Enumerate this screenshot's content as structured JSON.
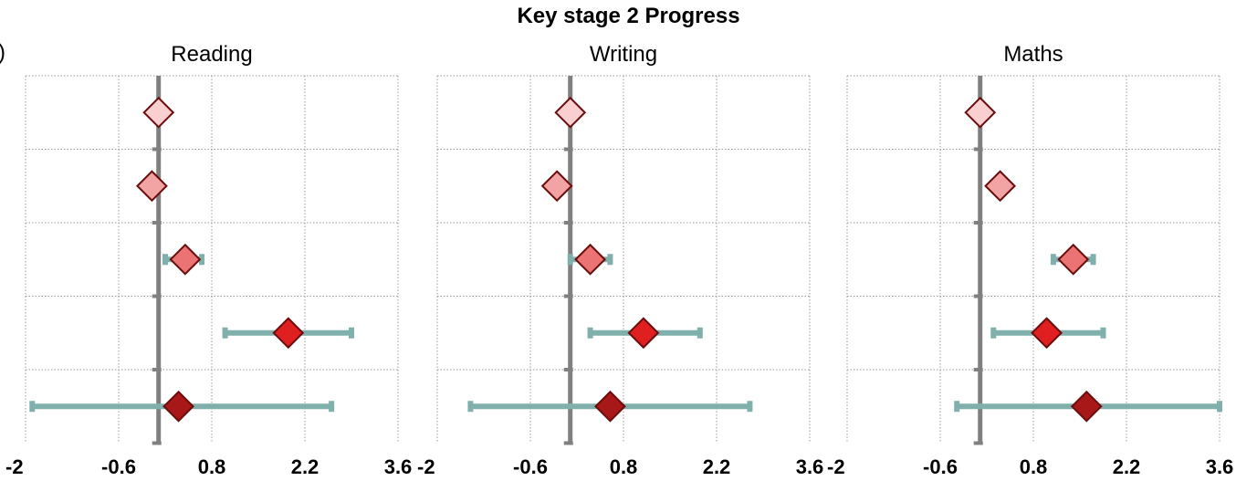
{
  "chart_data": {
    "type": "forest",
    "title": "Key stage 2 Progress",
    "left_edge_text": ")",
    "x_ticks": [
      -2,
      -0.6,
      0.8,
      2.2,
      3.6
    ],
    "x_tick_labels": [
      "-2",
      "-0.6",
      "0.8",
      "2.2",
      "3.6"
    ],
    "xlim": [
      -2,
      3.6
    ],
    "reference_line": 0,
    "grid": true,
    "colors": {
      "marker_fills": [
        "#f9cfcf",
        "#f2a3a3",
        "#ec7373",
        "#e02020",
        "#a81818"
      ],
      "marker_stroke": "#6b0d0d",
      "error_bar": "#80b0ab",
      "reference_line": "#808080",
      "grid": "#9a9a9a"
    },
    "panels": [
      {
        "title": "Reading",
        "rows": [
          {
            "value": 0.0,
            "lower": null,
            "upper": null
          },
          {
            "value": -0.1,
            "lower": null,
            "upper": null
          },
          {
            "value": 0.4,
            "lower": 0.1,
            "upper": 0.65
          },
          {
            "value": 1.95,
            "lower": 1.0,
            "upper": 2.9
          },
          {
            "value": 0.3,
            "lower": -1.9,
            "upper": 2.6
          }
        ]
      },
      {
        "title": "Writing",
        "rows": [
          {
            "value": 0.0,
            "lower": null,
            "upper": null
          },
          {
            "value": -0.2,
            "lower": null,
            "upper": null
          },
          {
            "value": 0.3,
            "lower": 0.0,
            "upper": 0.6
          },
          {
            "value": 1.1,
            "lower": 0.3,
            "upper": 1.95
          },
          {
            "value": 0.6,
            "lower": -1.5,
            "upper": 2.7
          }
        ]
      },
      {
        "title": "Maths",
        "rows": [
          {
            "value": 0.0,
            "lower": null,
            "upper": null
          },
          {
            "value": 0.3,
            "lower": null,
            "upper": null
          },
          {
            "value": 1.4,
            "lower": 1.1,
            "upper": 1.7
          },
          {
            "value": 1.0,
            "lower": 0.2,
            "upper": 1.85
          },
          {
            "value": 1.6,
            "lower": -0.35,
            "upper": 3.6
          }
        ]
      }
    ]
  }
}
